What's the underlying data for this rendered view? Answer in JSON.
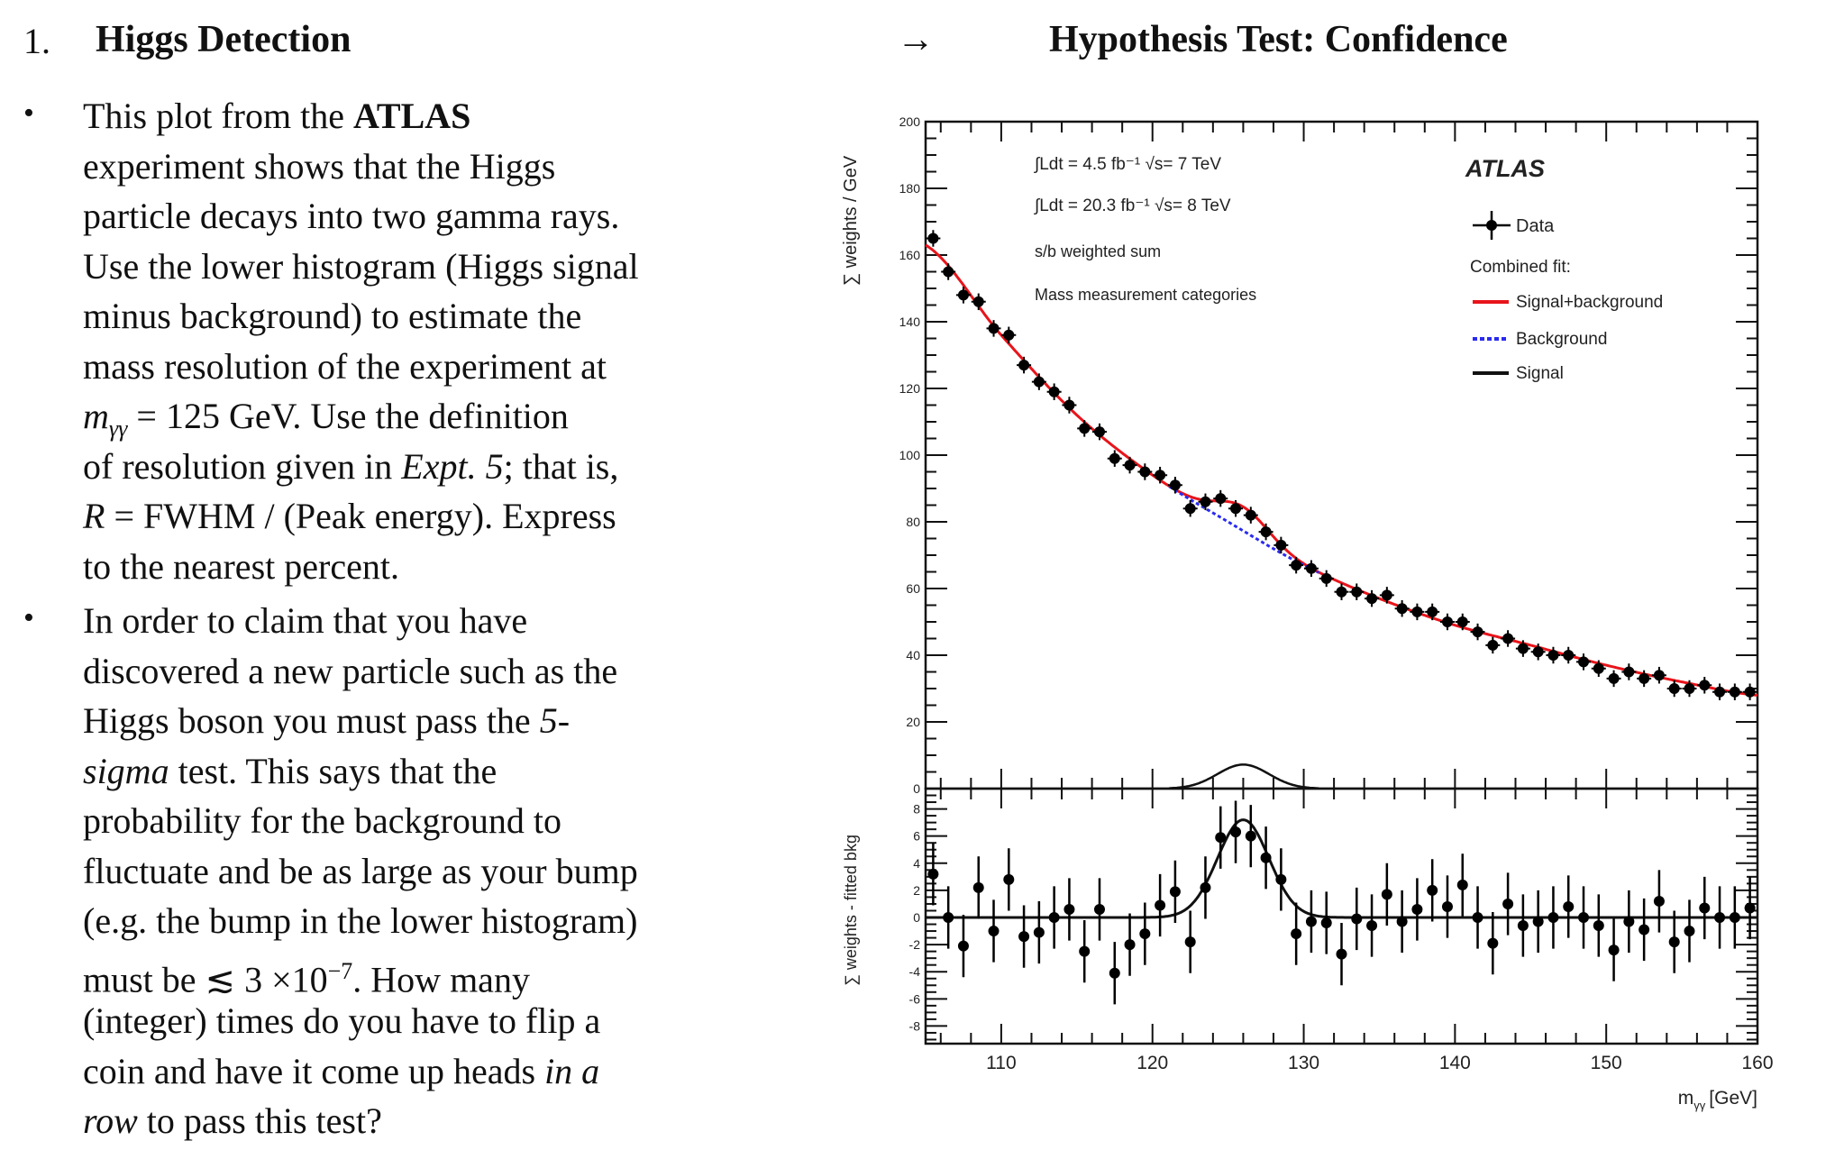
{
  "heading": {
    "number": "1.",
    "title": "Higgs Detection",
    "arrow": "→",
    "right_title": "Hypothesis Test: Confidence"
  },
  "bullets": [
    {
      "symbol": "•",
      "lines": [
        [
          {
            "t": "This plot from the "
          },
          {
            "t": "ATLAS",
            "b": true
          }
        ],
        [
          {
            "t": "experiment shows that the Higgs"
          }
        ],
        [
          {
            "t": "particle decays into two gamma rays."
          }
        ],
        [
          {
            "t": "Use the lower histogram (Higgs signal"
          }
        ],
        [
          {
            "t": "minus background) to estimate the"
          }
        ],
        [
          {
            "t": "mass resolution of the experiment at"
          }
        ],
        [
          {
            "t": "m",
            "i": true
          },
          {
            "t": "γγ",
            "i": true,
            "sub": true
          },
          {
            "t": " = 125 GeV. Use the definition"
          }
        ],
        [
          {
            "t": "of resolution given in "
          },
          {
            "t": "Expt. 5",
            "i": true
          },
          {
            "t": "; that is,"
          }
        ],
        [
          {
            "t": "R",
            "i": true
          },
          {
            "t": " = FWHM / (Peak energy). Express"
          }
        ],
        [
          {
            "t": "to the nearest percent."
          }
        ]
      ]
    },
    {
      "symbol": "•",
      "lines": [
        [
          {
            "t": "In order to claim that you have"
          }
        ],
        [
          {
            "t": "discovered a new particle such as the"
          }
        ],
        [
          {
            "t": "Higgs boson you must pass the "
          },
          {
            "t": "5-",
            "i": true
          }
        ],
        [
          {
            "t": "sigma",
            "i": true
          },
          {
            "t": " test. This says that the"
          }
        ],
        [
          {
            "t": "probability for the background to"
          }
        ],
        [
          {
            "t": "fluctuate and be as large as your bump"
          }
        ],
        [
          {
            "t": "(e.g. the bump in the lower histogram)"
          }
        ],
        [
          {
            "t": "must be ≲ 3 ×10"
          },
          {
            "t": "−7",
            "sup": true
          },
          {
            "t": ". How many"
          }
        ],
        [
          {
            "t": "(integer) times do you have to flip a"
          }
        ],
        [
          {
            "t": "coin and have it come up heads "
          },
          {
            "t": "in a",
            "i": true
          }
        ],
        [
          {
            "t": "row",
            "i": true
          },
          {
            "t": " to pass this test?"
          }
        ]
      ]
    }
  ],
  "chart_data": {
    "type": "scatter",
    "experiment_label": "ATLAS",
    "annotations": [
      "∫Ldt = 4.5 fb⁻¹ √s= 7 TeV",
      "∫Ldt = 20.3 fb⁻¹ √s= 8 TeV",
      "s/b weighted sum",
      "Mass measurement categories"
    ],
    "legend": {
      "placement": "top-right",
      "data": "Data",
      "combined_fit": "Combined fit:",
      "signal_background": "Signal+background",
      "background": "Background",
      "signal": "Signal"
    },
    "colors": {
      "signal_background": "#e8141b",
      "background": "#2a2af0",
      "signal": "#111111",
      "data": "#000000"
    },
    "xlabel": "m_γγ [GeV]",
    "xlabel_main": "m",
    "xlabel_sub": "γγ",
    "xlabel_unit": "[GeV]",
    "xlim": [
      105,
      160
    ],
    "xticks": [
      110,
      120,
      130,
      140,
      150,
      160
    ],
    "upper": {
      "ylabel": "∑ weights / GeV",
      "ylim": [
        0,
        200
      ],
      "yticks": [
        0,
        20,
        40,
        60,
        80,
        100,
        120,
        140,
        160,
        180,
        200
      ]
    },
    "lower": {
      "ylabel": "∑ weights - fitted bkg",
      "ylim": [
        -9.3,
        9.5
      ],
      "yticks": [
        -8,
        -6,
        -4,
        -2,
        0,
        2,
        4,
        6,
        8
      ]
    },
    "x": [
      105.5,
      106.5,
      107.5,
      108.5,
      109.5,
      110.5,
      111.5,
      112.5,
      113.5,
      114.5,
      115.5,
      116.5,
      117.5,
      118.5,
      119.5,
      120.5,
      121.5,
      122.5,
      123.5,
      124.5,
      125.5,
      126.5,
      127.5,
      128.5,
      129.5,
      130.5,
      131.5,
      132.5,
      133.5,
      134.5,
      135.5,
      136.5,
      137.5,
      138.5,
      139.5,
      140.5,
      141.5,
      142.5,
      143.5,
      144.5,
      145.5,
      146.5,
      147.5,
      148.5,
      149.5,
      150.5,
      151.5,
      152.5,
      153.5,
      154.5,
      155.5,
      156.5,
      157.5,
      158.5,
      159.5
    ],
    "data_values": [
      165,
      155,
      148,
      146,
      138,
      136,
      127,
      122,
      119,
      115,
      108,
      107,
      99,
      97,
      95,
      94,
      91,
      84,
      86,
      87,
      84,
      82,
      77,
      73,
      67,
      66,
      63,
      59,
      59,
      57,
      58,
      54,
      53,
      53,
      50,
      50,
      47,
      43,
      45,
      42,
      41,
      40,
      40,
      38,
      36,
      33,
      35,
      33,
      34,
      30,
      30,
      31,
      29,
      29,
      29
    ],
    "residuals": [
      3.2,
      0,
      -2.1,
      2.2,
      -1,
      2.8,
      -1.4,
      -1.1,
      0,
      0.6,
      -2.5,
      0.6,
      -4.1,
      -2,
      -1.2,
      0.9,
      1.9,
      -1.8,
      2.2,
      5.9,
      6.3,
      6,
      4.4,
      2.8,
      -1.2,
      -0.3,
      -0.4,
      -2.7,
      -0.1,
      -0.6,
      1.7,
      -0.3,
      0.6,
      2,
      0.8,
      2.4,
      0,
      -1.9,
      1,
      -0.6,
      -0.3,
      0,
      0.8,
      0,
      -0.6,
      -2.4,
      -0.3,
      -0.9,
      1.2,
      -1.8,
      -1,
      0.7,
      0,
      0,
      0.7
    ],
    "residual_error": 2.3,
    "data_error": 2.5,
    "background_fit": {
      "x": [
        105,
        110,
        115,
        120,
        125,
        130,
        135,
        140,
        145,
        150,
        155,
        160
      ],
      "y": [
        163,
        136,
        112,
        94,
        80,
        67,
        57,
        49,
        43,
        37,
        32,
        28
      ]
    },
    "signal_fit": {
      "mean": 126,
      "sigma": 1.7,
      "amplitude": 7.2
    }
  }
}
